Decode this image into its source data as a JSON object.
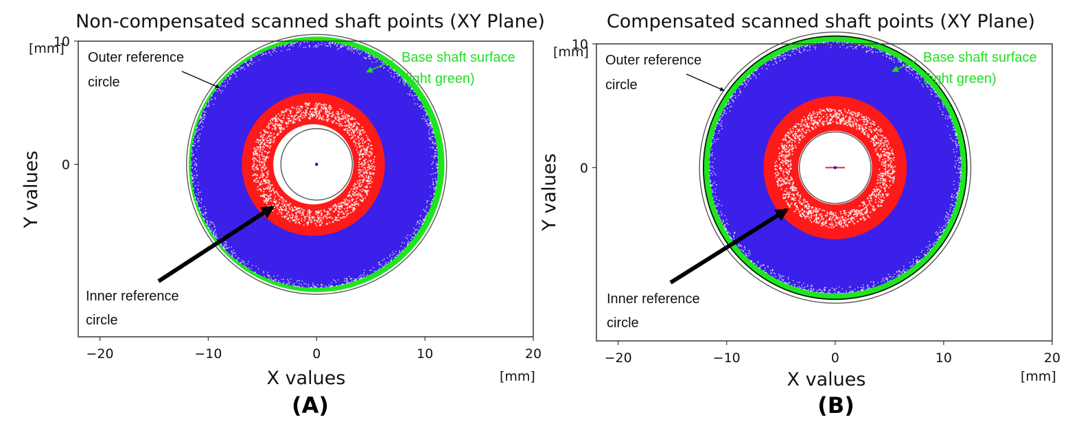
{
  "colors": {
    "outer_band": "#3a20e8",
    "inner_band": "#ff1a1a",
    "base_surface": "#1ee61e",
    "reference_circle": "#555555",
    "green_text": "#22dd22",
    "frame": "#333333"
  },
  "chart_data": [
    {
      "type": "scatter",
      "title": "Non-compensated scanned shaft points (XY Plane)",
      "xlabel": "X values",
      "ylabel": "Y values",
      "x_unit": "[mm]",
      "y_unit": "[mm]",
      "xlim": [
        -22,
        20
      ],
      "ylim": [
        -14,
        10
      ],
      "xticks": [
        -20,
        -10,
        0,
        10,
        20
      ],
      "yticks": [
        0,
        10
      ],
      "panel_label": "(A)",
      "circles": [
        {
          "name": "base",
          "cx": 0,
          "cy": 0,
          "r": 11.8
        },
        {
          "name": "outer_reference",
          "cx": 0,
          "cy": 0,
          "r": 12.0
        },
        {
          "name": "inner_reference",
          "cx": 0,
          "cy": 0,
          "r": 3.3
        },
        {
          "name": "blue_band",
          "cx": -0.2,
          "cy": 0,
          "r_outer": 11.4,
          "r_inner": 6.6
        },
        {
          "name": "red_band",
          "cx": -0.3,
          "cy": 0,
          "r_outer": 6.6,
          "r_inner": 3.7
        }
      ],
      "annotations": {
        "outer_reference": "Outer reference\ncircle",
        "base_surface": "Base shaft surface\n(light green)",
        "inner_reference": "Inner reference\ncircle"
      }
    },
    {
      "type": "scatter",
      "title": "Compensated scanned shaft points (XY Plane)",
      "xlabel": "X values",
      "ylabel": "Y values",
      "x_unit": "[mm]",
      "y_unit": "[mm]",
      "xlim": [
        -22,
        20
      ],
      "ylim": [
        -14,
        10
      ],
      "xticks": [
        -20,
        -10,
        0,
        10,
        20
      ],
      "yticks": [
        0,
        10
      ],
      "panel_label": "(B)",
      "circles": [
        {
          "name": "base",
          "cx": 0,
          "cy": 0,
          "r": 12.2
        },
        {
          "name": "outer_reference",
          "cx": 0,
          "cy": 0,
          "r": 12.5
        },
        {
          "name": "inner_reference",
          "cx": 0,
          "cy": 0,
          "r": 3.3
        },
        {
          "name": "blue_band",
          "cx": 0,
          "cy": 0,
          "r_outer": 11.6,
          "r_inner": 6.6
        },
        {
          "name": "red_band",
          "cx": 0,
          "cy": 0,
          "r_outer": 6.6,
          "r_inner": 3.4
        }
      ],
      "annotations": {
        "outer_reference": "Outer reference\ncircle",
        "base_surface": "Base shaft surface\n(light green)",
        "inner_reference": "Inner reference\ncircle"
      }
    }
  ]
}
